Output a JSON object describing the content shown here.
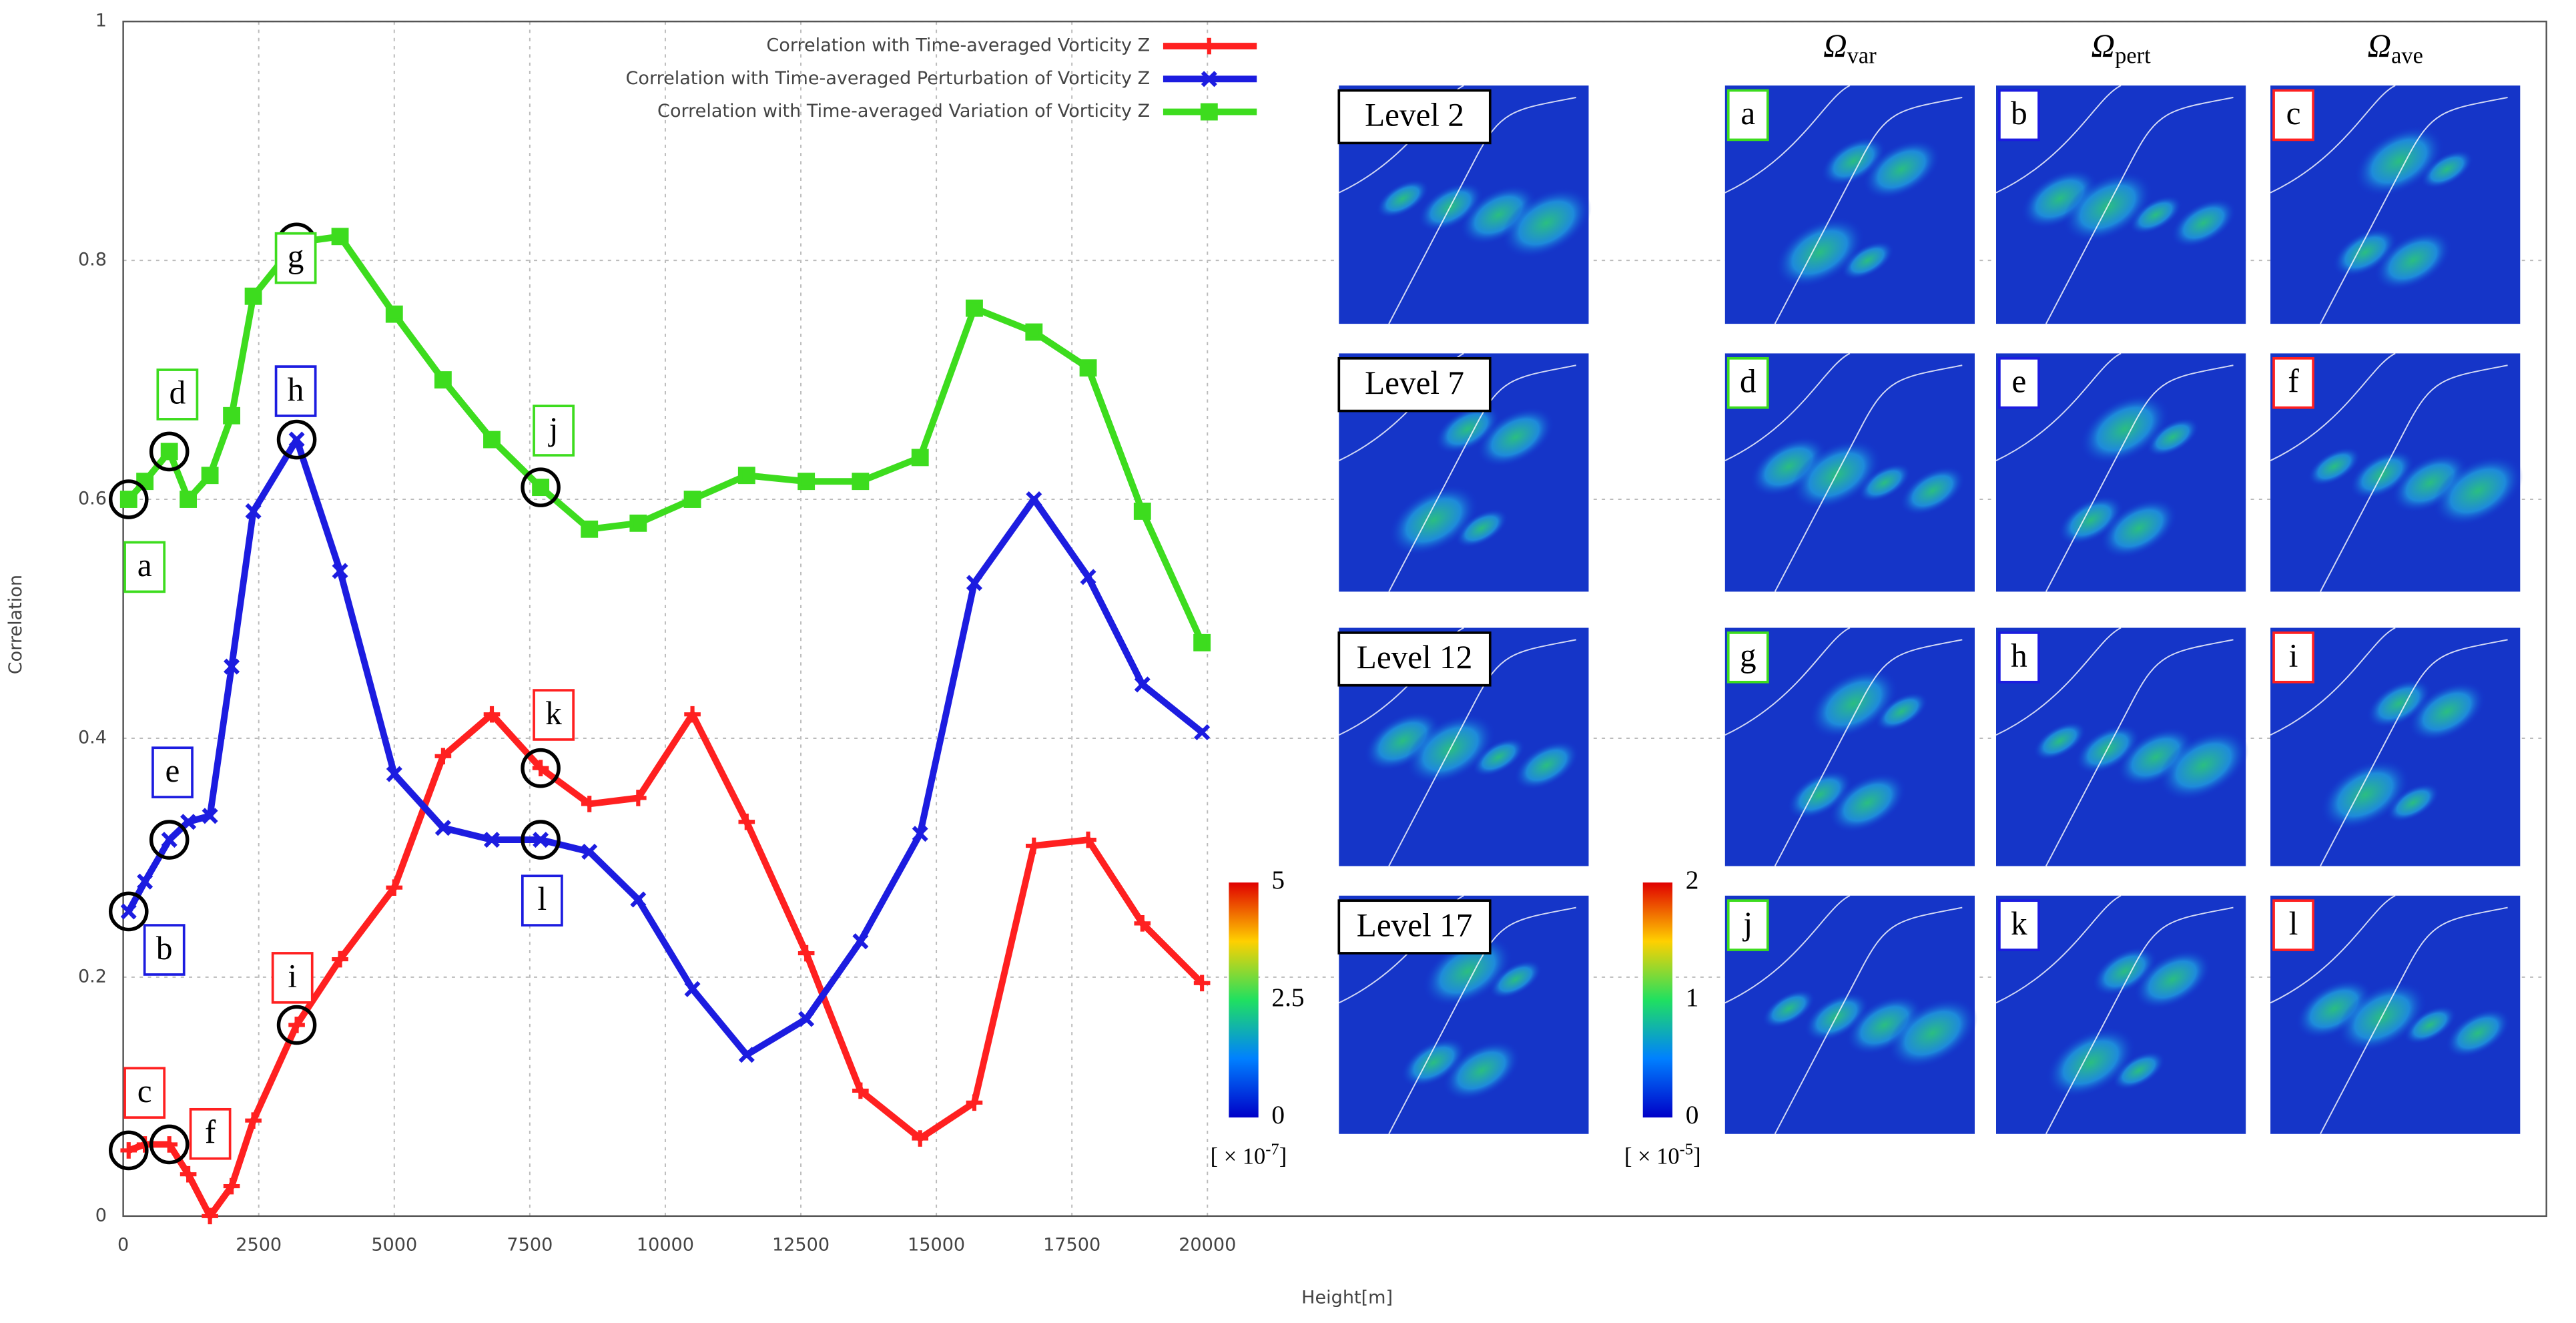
{
  "chart_data": {
    "type": "line",
    "x_label": "Height[m]",
    "y_label": "Correlation",
    "x": [
      100,
      400,
      850,
      1200,
      1600,
      2000,
      2400,
      3200,
      4000,
      5000,
      5900,
      6800,
      7700,
      8600,
      9500,
      10500,
      11500,
      12600,
      13600,
      14700,
      15700,
      16800,
      17800,
      18800,
      19900
    ],
    "series": [
      {
        "name": "Correlation with Time-averaged Vorticity Z",
        "color": "#ff2020",
        "marker": "plus",
        "values": [
          0.055,
          0.06,
          0.06,
          0.035,
          0.0,
          0.025,
          0.08,
          0.16,
          0.215,
          0.275,
          0.385,
          0.42,
          0.375,
          0.345,
          0.35,
          0.42,
          0.33,
          0.22,
          0.105,
          0.065,
          0.095,
          0.31,
          0.315,
          0.245,
          0.195
        ]
      },
      {
        "name": "Correlation with Time-averaged Perturbation of Vorticity Z",
        "color": "#1c1ce0",
        "marker": "cross",
        "values": [
          0.255,
          0.28,
          0.315,
          0.33,
          0.335,
          0.46,
          0.59,
          0.65,
          0.54,
          0.37,
          0.325,
          0.315,
          0.315,
          0.305,
          0.265,
          0.19,
          0.135,
          0.165,
          0.23,
          0.32,
          0.53,
          0.6,
          0.535,
          0.445,
          0.405
        ]
      },
      {
        "name": "Correlation with Time-averaged Variation of Vorticity Z",
        "color": "#3ddc1e",
        "marker": "square",
        "values": [
          0.6,
          0.615,
          0.64,
          0.6,
          0.62,
          0.67,
          0.77,
          0.815,
          0.82,
          0.755,
          0.7,
          0.65,
          0.61,
          0.575,
          0.58,
          0.6,
          0.62,
          0.615,
          0.615,
          0.635,
          0.76,
          0.74,
          0.71,
          0.59,
          0.48
        ]
      }
    ],
    "xlim": [
      0,
      44700
    ],
    "ylim": [
      0,
      1
    ],
    "xticks": [
      0,
      2500,
      5000,
      7500,
      10000,
      12500,
      15000,
      17500,
      20000
    ],
    "yticks": [
      0,
      0.2,
      0.4,
      0.6,
      0.8,
      1
    ],
    "grid": true,
    "legend": "top",
    "annotations": [
      "a",
      "b",
      "c",
      "d",
      "e",
      "f",
      "g",
      "h",
      "i",
      "j",
      "k",
      "l"
    ]
  },
  "panels": {
    "column_headers": [
      {
        "symbol": "Ω",
        "sub": "var"
      },
      {
        "symbol": "Ω",
        "sub": "pert"
      },
      {
        "symbol": "Ω",
        "sub": "ave"
      }
    ],
    "row_labels": [
      "Level 2",
      "Level 7",
      "Level 12",
      "Level 17"
    ],
    "letters": [
      [
        "a",
        "b",
        "c"
      ],
      [
        "d",
        "e",
        "f"
      ],
      [
        "g",
        "h",
        "i"
      ],
      [
        "j",
        "k",
        "l"
      ]
    ],
    "colorbars": [
      {
        "ticks": [
          0,
          2.5,
          5
        ],
        "unit": {
          "base": "[ × 10",
          "exp": "-7",
          "close": "]"
        }
      },
      {
        "ticks": [
          0,
          1,
          2
        ],
        "unit": {
          "base": "[ × 10",
          "exp": "-5",
          "close": "]"
        }
      }
    ]
  }
}
